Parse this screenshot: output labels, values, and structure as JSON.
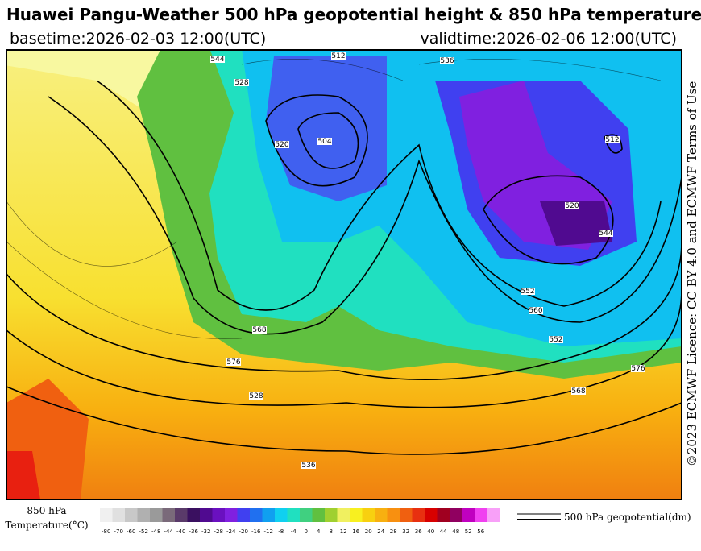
{
  "header": {
    "title": "Huawei Pangu-Weather 500 hPa geopotential height & 850 hPa temperature",
    "basetime": "basetime:2026-02-03 12:00(UTC)",
    "validtime": "validtime:2026-02-06 12:00(UTC)"
  },
  "licence": "©2023 ECMWF Licence: CC BY 4.0 and ECMWF Terms of Use",
  "map": {
    "contour_labels": [
      "544",
      "528",
      "512",
      "504",
      "520",
      "536",
      "552",
      "560",
      "568",
      "576",
      "528",
      "536",
      "544",
      "552",
      "568",
      "576",
      "520",
      "512"
    ]
  },
  "legend": {
    "temperature_title": "850 hPa",
    "temperature_unit": "Temperature(°C)",
    "contour_label": "500 hPa geopotential(dm)",
    "ticks": [
      "-80",
      "-70",
      "-60",
      "-52",
      "-48",
      "-44",
      "-40",
      "-36",
      "-32",
      "-28",
      "-24",
      "-20",
      "-16",
      "-12",
      "-8",
      "-4",
      "0",
      "4",
      "8",
      "12",
      "16",
      "20",
      "24",
      "28",
      "32",
      "36",
      "40",
      "44",
      "48",
      "52",
      "56"
    ],
    "colors": [
      "#f0f0f0",
      "#e0e0e0",
      "#c8c8c8",
      "#b0b0b0",
      "#9a9a9a",
      "#7a6a7a",
      "#5a3a6a",
      "#3a1060",
      "#500a90",
      "#6a10c0",
      "#8020e0",
      "#4040f0",
      "#2070f0",
      "#10a0f0",
      "#10d0f0",
      "#20e0c0",
      "#40d080",
      "#60c040",
      "#a0d030",
      "#f0f060",
      "#f8f020",
      "#f8d010",
      "#f8b010",
      "#f89010",
      "#f06010",
      "#e83010",
      "#d80000",
      "#a00020",
      "#900060",
      "#c000c0",
      "#f040f0",
      "#f8a0f8"
    ]
  }
}
